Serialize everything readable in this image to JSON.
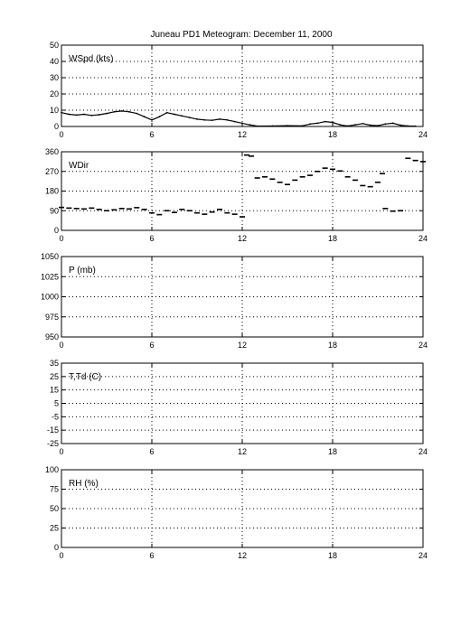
{
  "title": "Juneau PD1 Meteogram:  December 11, 2000",
  "chart_data": [
    {
      "type": "line",
      "label": "WSpd (kts)",
      "xlim": [
        0,
        24
      ],
      "ylim": [
        0,
        50
      ],
      "xticks": [
        0,
        6,
        12,
        18,
        24
      ],
      "yticks": [
        0,
        10,
        20,
        30,
        40,
        50
      ],
      "grid": true,
      "points": [
        [
          0,
          8.5
        ],
        [
          0.5,
          7.5
        ],
        [
          1,
          7
        ],
        [
          1.5,
          7.5
        ],
        [
          2,
          6.8
        ],
        [
          2.5,
          7.2
        ],
        [
          3,
          8
        ],
        [
          3.5,
          9
        ],
        [
          4,
          9.5
        ],
        [
          4.5,
          9
        ],
        [
          5,
          8
        ],
        [
          5.5,
          6
        ],
        [
          6,
          4
        ],
        [
          6.5,
          6
        ],
        [
          7,
          8.5
        ],
        [
          7.5,
          7.5
        ],
        [
          8,
          6.5
        ],
        [
          8.5,
          5.5
        ],
        [
          9,
          4.5
        ],
        [
          9.5,
          4
        ],
        [
          10,
          3.8
        ],
        [
          10.5,
          4.5
        ],
        [
          11,
          4
        ],
        [
          11.5,
          3
        ],
        [
          12,
          2
        ],
        [
          12.5,
          1
        ],
        [
          13,
          0.2
        ],
        [
          14,
          0.3
        ],
        [
          15,
          0.5
        ],
        [
          16,
          0.4
        ],
        [
          16.5,
          1.5
        ],
        [
          17,
          2
        ],
        [
          17.5,
          3
        ],
        [
          18,
          2.5
        ],
        [
          18.5,
          1
        ],
        [
          19,
          0.3
        ],
        [
          19.5,
          1
        ],
        [
          20,
          1.8
        ],
        [
          20.5,
          0.8
        ],
        [
          21,
          0.5
        ],
        [
          21.5,
          1.5
        ],
        [
          22,
          2
        ],
        [
          22.5,
          0.8
        ],
        [
          23,
          0.3
        ],
        [
          23.5,
          0.2
        ]
      ]
    },
    {
      "type": "scatter",
      "label": "WDir",
      "xlim": [
        0,
        24
      ],
      "ylim": [
        0,
        360
      ],
      "xticks": [
        0,
        6,
        12,
        18,
        24
      ],
      "yticks": [
        0,
        90,
        180,
        270,
        360
      ],
      "grid": true,
      "points": [
        [
          0,
          105
        ],
        [
          0.5,
          102
        ],
        [
          1,
          100
        ],
        [
          1.5,
          98
        ],
        [
          2,
          102
        ],
        [
          2.5,
          96
        ],
        [
          3,
          90
        ],
        [
          3.5,
          94
        ],
        [
          4,
          100
        ],
        [
          4.5,
          98
        ],
        [
          5,
          104
        ],
        [
          5.5,
          96
        ],
        [
          6,
          80
        ],
        [
          6.5,
          72
        ],
        [
          7,
          90
        ],
        [
          7.5,
          82
        ],
        [
          8,
          96
        ],
        [
          8.5,
          90
        ],
        [
          9,
          80
        ],
        [
          9.5,
          74
        ],
        [
          10,
          84
        ],
        [
          10.5,
          96
        ],
        [
          11,
          80
        ],
        [
          11.5,
          74
        ],
        [
          12,
          62
        ],
        [
          12.3,
          345
        ],
        [
          12.6,
          340
        ],
        [
          13,
          240
        ],
        [
          13.5,
          245
        ],
        [
          14,
          235
        ],
        [
          14.5,
          220
        ],
        [
          15,
          210
        ],
        [
          15.5,
          230
        ],
        [
          16,
          245
        ],
        [
          16.5,
          252
        ],
        [
          17,
          270
        ],
        [
          17.5,
          285
        ],
        [
          18,
          280
        ],
        [
          18.5,
          272
        ],
        [
          19,
          245
        ],
        [
          19.5,
          230
        ],
        [
          20,
          205
        ],
        [
          20.5,
          200
        ],
        [
          21,
          220
        ],
        [
          21.3,
          260
        ],
        [
          21.5,
          100
        ],
        [
          22,
          88
        ],
        [
          22.5,
          90
        ],
        [
          23,
          330
        ],
        [
          23.5,
          320
        ],
        [
          24,
          315
        ]
      ]
    },
    {
      "type": "line",
      "label": "P (mb)",
      "xlim": [
        0,
        24
      ],
      "ylim": [
        950,
        1050
      ],
      "xticks": [
        0,
        6,
        12,
        18,
        24
      ],
      "yticks": [
        950,
        975,
        1000,
        1025,
        1050
      ],
      "grid": true,
      "points": []
    },
    {
      "type": "line",
      "label": "T,Td (C)",
      "xlim": [
        0,
        24
      ],
      "ylim": [
        -25,
        35
      ],
      "xticks": [
        0,
        6,
        12,
        18,
        24
      ],
      "yticks": [
        -25,
        -15,
        -5,
        5,
        15,
        25,
        35
      ],
      "ytick_labels": [
        "-25",
        "-15",
        "-5",
        "5",
        "15",
        "25",
        "35"
      ],
      "grid": true,
      "points": []
    },
    {
      "type": "line",
      "label": "RH (%)",
      "xlim": [
        0,
        24
      ],
      "ylim": [
        0,
        100
      ],
      "xticks": [
        0,
        6,
        12,
        18,
        24
      ],
      "yticks": [
        0,
        25,
        50,
        75,
        100
      ],
      "grid": true,
      "points": []
    }
  ]
}
